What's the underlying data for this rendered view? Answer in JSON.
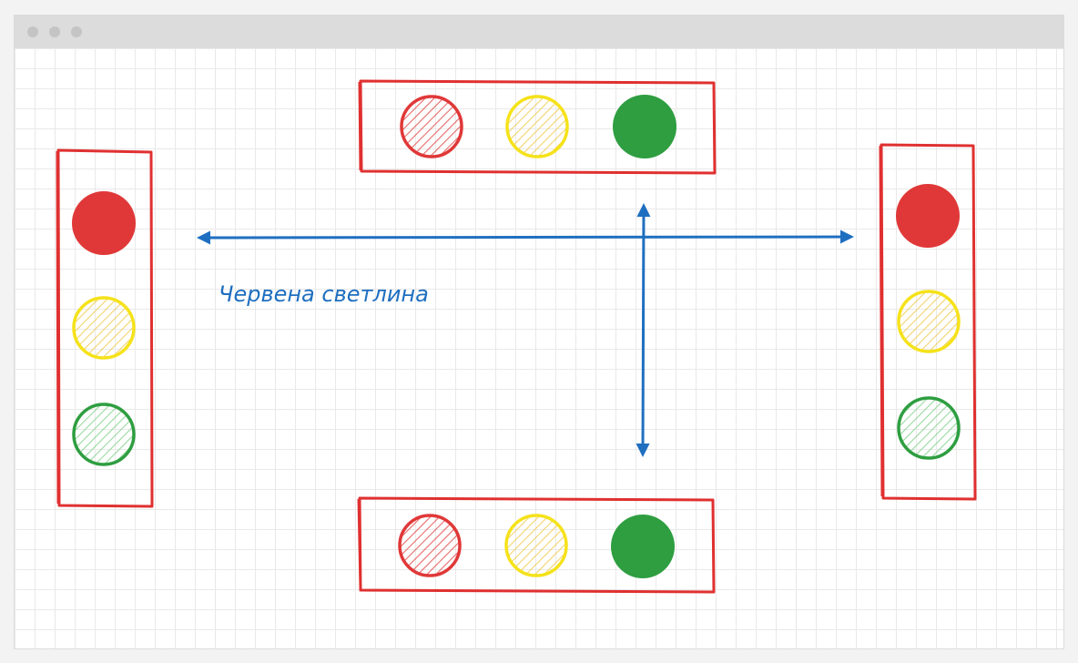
{
  "window": {
    "titlebar_dots": [
      "window-dot-1",
      "window-dot-2",
      "window-dot-3"
    ]
  },
  "colors": {
    "box_outline": "#e03030",
    "red_light": "#e03838",
    "yellow_light": "#f5e21a",
    "green_light": "#2e9e40",
    "arrow": "#1f6fc0"
  },
  "traffic_lights": {
    "top": {
      "orientation": "horizontal",
      "red": "off",
      "yellow": "off",
      "green": "on"
    },
    "bottom": {
      "orientation": "horizontal",
      "red": "off",
      "yellow": "off",
      "green": "on"
    },
    "left": {
      "orientation": "vertical",
      "red": "on",
      "yellow": "off",
      "green": "off"
    },
    "right": {
      "orientation": "vertical",
      "red": "on",
      "yellow": "off",
      "green": "off"
    }
  },
  "arrows": {
    "horizontal": "bidirectional",
    "vertical": "bidirectional"
  },
  "labels": {
    "caption": "Червена светлина"
  }
}
